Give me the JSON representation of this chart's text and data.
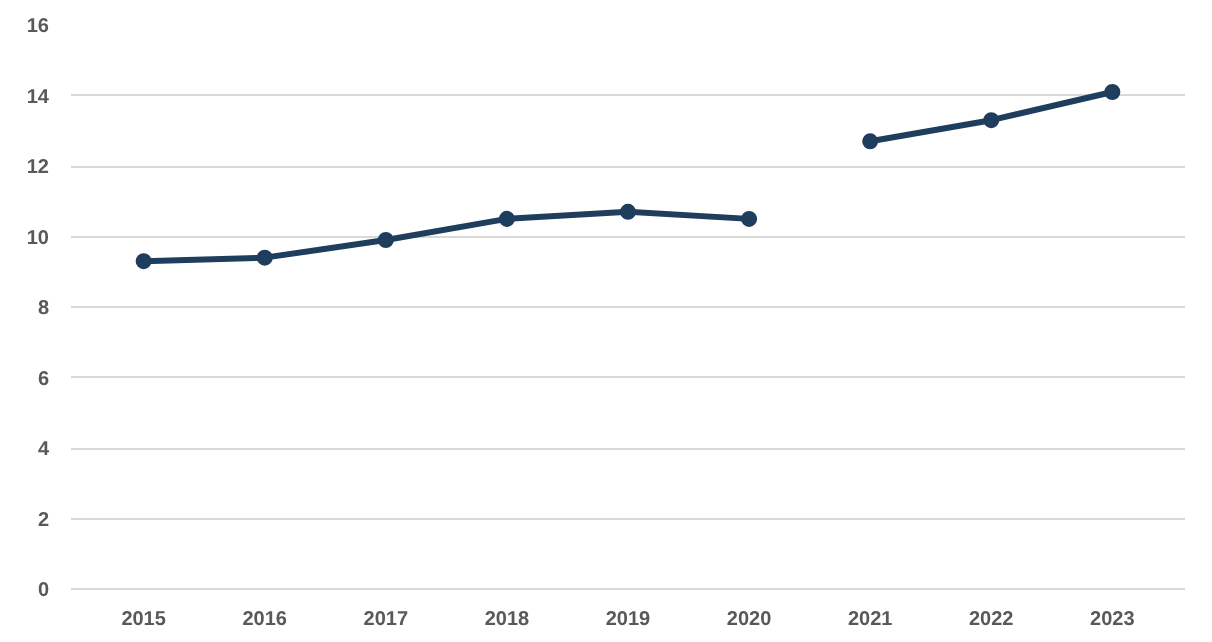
{
  "chart_data": {
    "type": "line",
    "categories": [
      "2015",
      "2016",
      "2017",
      "2018",
      "2019",
      "2020",
      "2021",
      "2022",
      "2023"
    ],
    "series": [
      {
        "color": "#1f3d5c",
        "values": [
          9.3,
          9.4,
          9.9,
          10.5,
          10.7,
          10.5,
          null,
          null,
          null
        ]
      },
      {
        "color": "#1f3d5c",
        "values": [
          null,
          null,
          null,
          null,
          null,
          null,
          12.7,
          13.3,
          14.1
        ]
      }
    ],
    "ylim": [
      0,
      16
    ],
    "yticks": [
      0,
      2,
      4,
      6,
      8,
      10,
      12,
      14,
      16
    ],
    "grid": "y",
    "marker": "circle",
    "line_style": "solid"
  }
}
